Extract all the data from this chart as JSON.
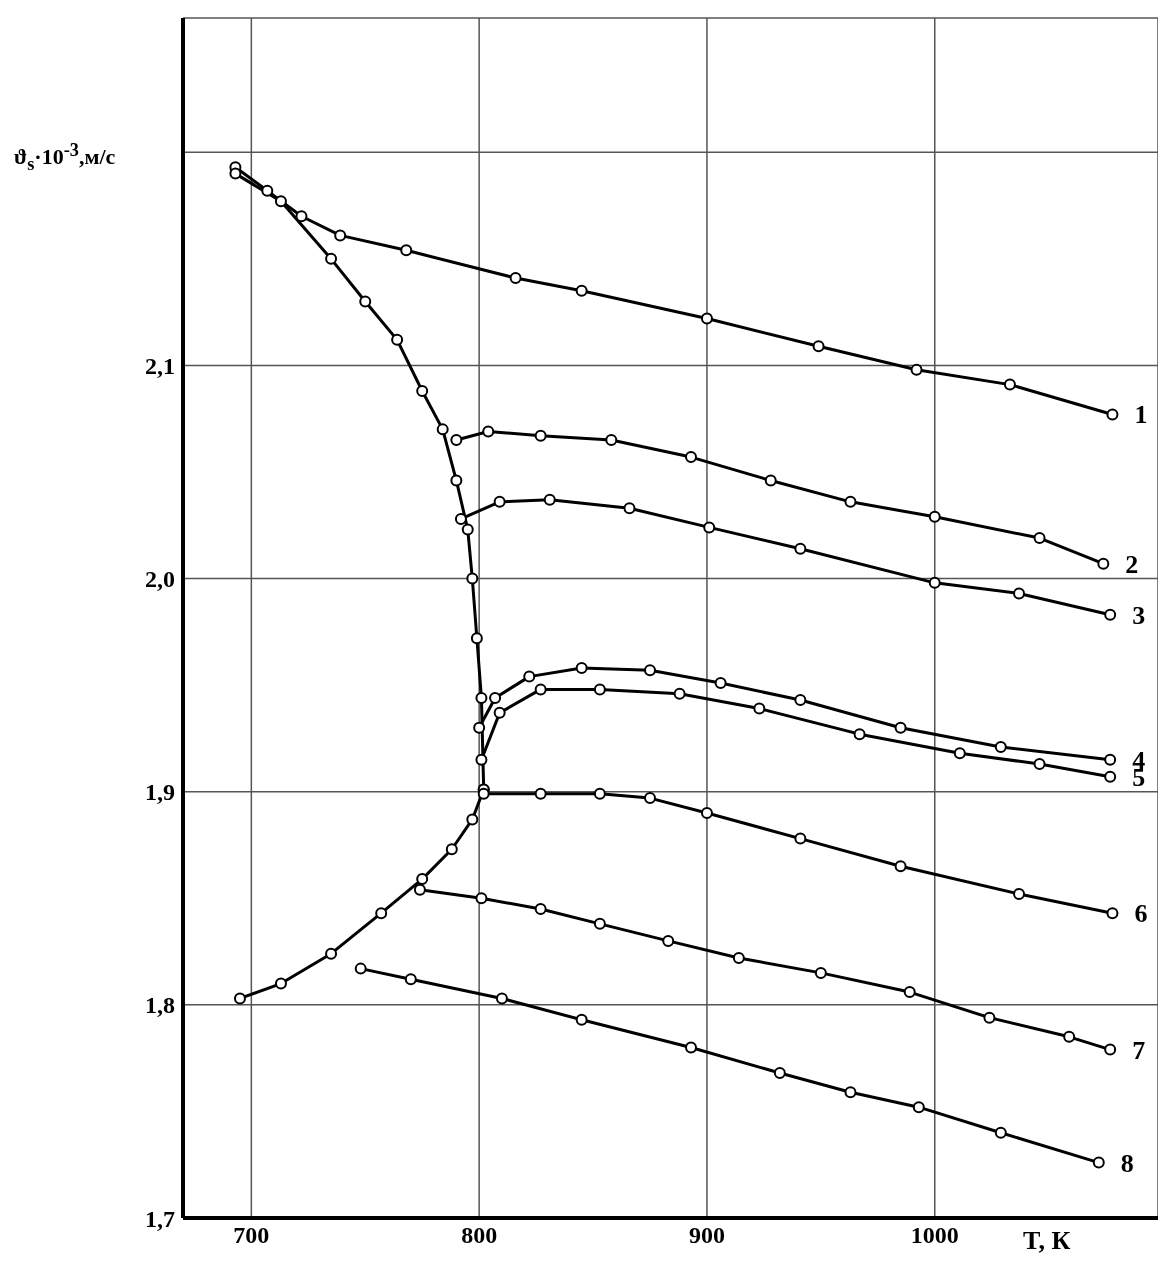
{
  "chart_data": {
    "type": "line",
    "xlabel": "T, К",
    "ylabel": "ϑ$_{s}$·10$^{-3}$,м/с",
    "xlim": [
      670,
      1098
    ],
    "ylim": [
      1.7,
      2.263
    ],
    "xticks": [
      700,
      800,
      900,
      1000
    ],
    "yticks": [
      {
        "value": 1.7,
        "label": "1,7"
      },
      {
        "value": 1.8,
        "label": "1,8"
      },
      {
        "value": 1.9,
        "label": "1,9"
      },
      {
        "value": 2.0,
        "label": "2,0"
      },
      {
        "value": 2.1,
        "label": "2,1"
      },
      {
        "value": 2.2,
        "label": null
      }
    ],
    "grid": true,
    "marker": "circle",
    "line_style": "solid",
    "series": [
      {
        "name": "1",
        "color": "#000000",
        "x": [
          693,
          707,
          722,
          739,
          768,
          816,
          845,
          900,
          949,
          992,
          1033,
          1078
        ],
        "values": [
          2.193,
          2.182,
          2.17,
          2.161,
          2.154,
          2.141,
          2.135,
          2.122,
          2.109,
          2.098,
          2.091,
          2.077
        ]
      },
      {
        "color": "#000000",
        "x": [
          693,
          713,
          735,
          750,
          764,
          775,
          784,
          790,
          795,
          797,
          799,
          801,
          802
        ],
        "values": [
          2.19,
          2.177,
          2.15,
          2.13,
          2.112,
          2.088,
          2.07,
          2.046,
          2.023,
          2.0,
          1.972,
          1.944,
          1.901
        ]
      },
      {
        "name": "2",
        "color": "#000000",
        "x": [
          790,
          804,
          827,
          858,
          893,
          928,
          963,
          1000,
          1046,
          1074
        ],
        "values": [
          2.065,
          2.069,
          2.067,
          2.065,
          2.057,
          2.046,
          2.036,
          2.029,
          2.019,
          2.007
        ]
      },
      {
        "name": "3",
        "color": "#000000",
        "x": [
          792,
          809,
          831,
          866,
          901,
          941,
          1000,
          1037,
          1077
        ],
        "values": [
          2.028,
          2.036,
          2.037,
          2.033,
          2.024,
          2.014,
          1.998,
          1.993,
          1.983
        ]
      },
      {
        "name": "4",
        "color": "#000000",
        "x": [
          800,
          807,
          822,
          845,
          875,
          906,
          941,
          985,
          1029,
          1077
        ],
        "values": [
          1.93,
          1.944,
          1.954,
          1.958,
          1.957,
          1.951,
          1.943,
          1.93,
          1.921,
          1.915
        ]
      },
      {
        "name": "5",
        "color": "#000000",
        "x": [
          801,
          809,
          827,
          853,
          888,
          923,
          967,
          1011,
          1046,
          1077
        ],
        "values": [
          1.915,
          1.937,
          1.948,
          1.948,
          1.946,
          1.939,
          1.927,
          1.918,
          1.913,
          1.907
        ]
      },
      {
        "color": "#000000",
        "x": [
          695,
          713,
          735,
          757,
          775,
          788,
          797,
          802
        ],
        "values": [
          1.803,
          1.81,
          1.824,
          1.843,
          1.859,
          1.873,
          1.887,
          1.901
        ]
      },
      {
        "name": "6",
        "color": "#000000",
        "x": [
          802,
          827,
          853,
          875,
          900,
          941,
          985,
          1037,
          1078
        ],
        "values": [
          1.899,
          1.899,
          1.899,
          1.897,
          1.89,
          1.878,
          1.865,
          1.852,
          1.843
        ]
      },
      {
        "name": "7",
        "color": "#000000",
        "x": [
          774,
          801,
          827,
          853,
          883,
          914,
          950,
          989,
          1024,
          1059,
          1077
        ],
        "values": [
          1.854,
          1.85,
          1.845,
          1.838,
          1.83,
          1.822,
          1.815,
          1.806,
          1.794,
          1.785,
          1.779
        ]
      },
      {
        "name": "8",
        "color": "#000000",
        "x": [
          748,
          770,
          810,
          845,
          893,
          932,
          963,
          993,
          1029,
          1072
        ],
        "values": [
          1.817,
          1.812,
          1.803,
          1.793,
          1.78,
          1.768,
          1.759,
          1.752,
          1.74,
          1.726
        ]
      }
    ]
  }
}
